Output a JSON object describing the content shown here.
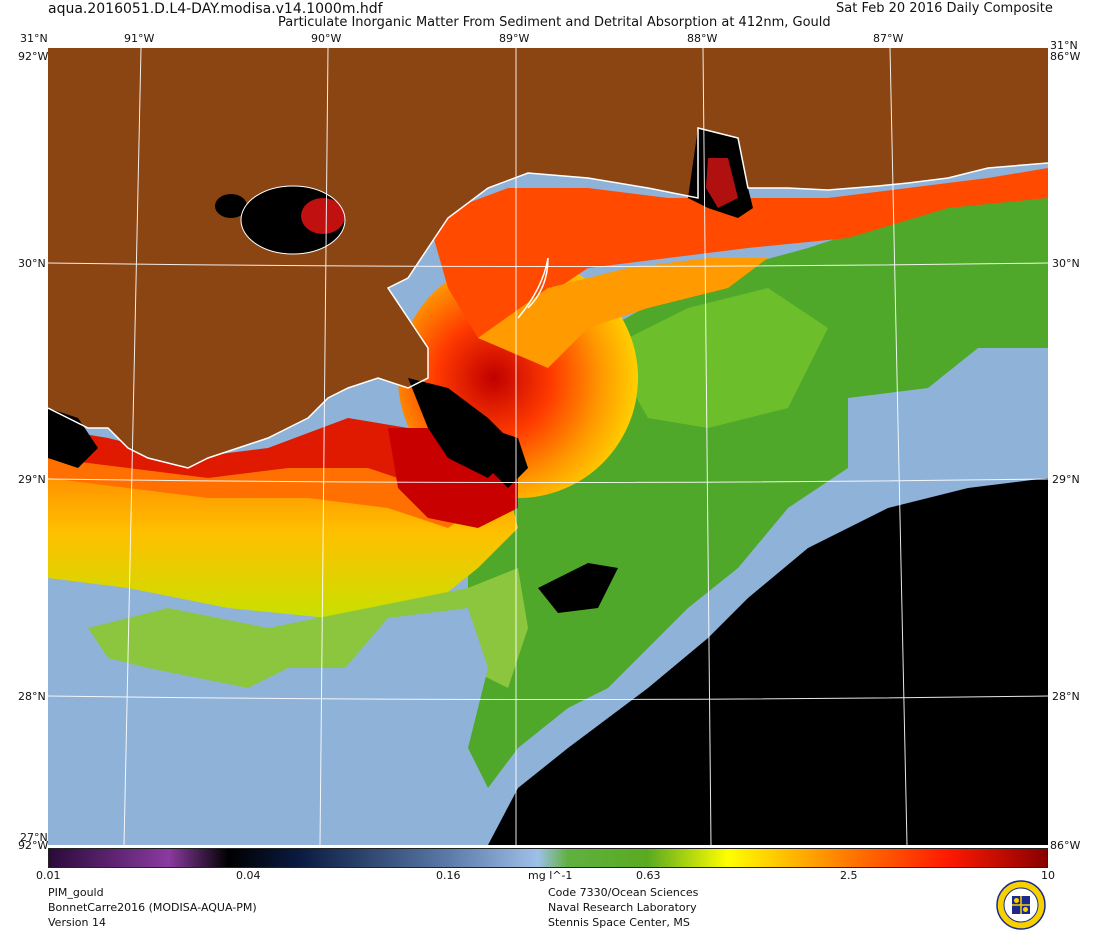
{
  "header": {
    "filename": "aqua.2016051.D.L4-DAY.modisa.v14.1000m.hdf",
    "title": "Particulate Inorganic Matter From Sediment and Detrital Absorption at 412nm, Gould",
    "date": "Sat Feb 20 2016 Daily Composite"
  },
  "map": {
    "lon_labels_top": [
      "91°W",
      "90°W",
      "89°W",
      "88°W",
      "87°W"
    ],
    "lat_labels": [
      "31°N",
      "30°N",
      "29°N",
      "28°N"
    ],
    "corner_top_left": "31°N",
    "corner_top_right": "31°N",
    "corner_side_left": "92°W",
    "corner_side_right": "86°W",
    "corner_bottom_left": "27°N",
    "corner_bottom_left_lon": "92°W",
    "corner_bottom_right_lon": "86°W",
    "extent": {
      "lon_min": -92.0,
      "lon_max": -86.0,
      "lat_min": 27.0,
      "lat_max": 31.0
    },
    "colors": {
      "land": "#8b4513",
      "no_data": "#000000",
      "coast": "#ffffff"
    }
  },
  "colorbar": {
    "tick_labels": [
      "0.01",
      "0.04",
      "0.16",
      "0.63",
      "2.5",
      "10"
    ],
    "unit": "mg l^-1",
    "min": 0.01,
    "max": 10,
    "scale": "log"
  },
  "footer": {
    "product": "PIM_gould",
    "project": "BonnetCarre2016 (MODISA-AQUA-PM)",
    "version": "Version 14",
    "code": "Code 7330/Ocean Sciences",
    "lab": "Naval Research Laboratory",
    "location": "Stennis Space Center, MS"
  }
}
